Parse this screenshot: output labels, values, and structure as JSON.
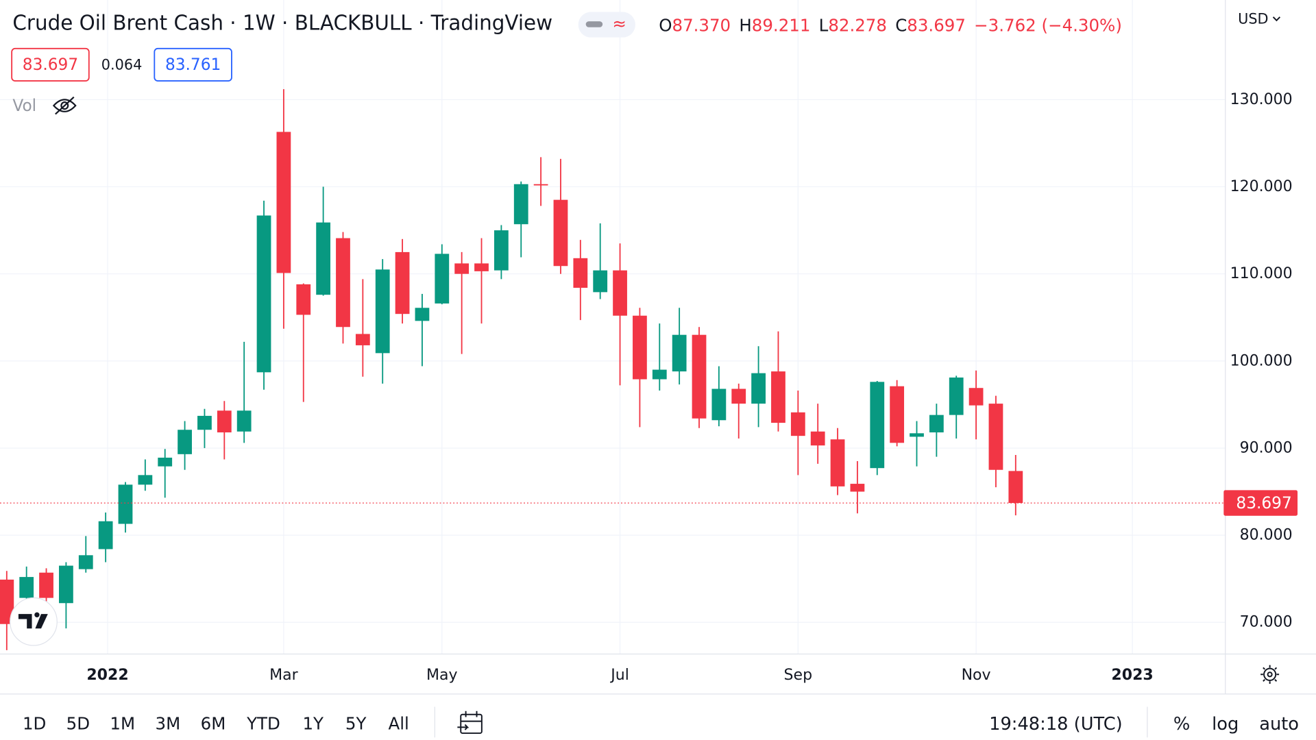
{
  "chart_data": {
    "type": "candlestick",
    "title": "Crude Oil Brent Cash · 1W · BLACKBULL · TradingView",
    "ohlc_legend": [
      {
        "label": "O",
        "value": "87.370"
      },
      {
        "label": "H",
        "value": "89.211"
      },
      {
        "label": "L",
        "value": "82.278"
      },
      {
        "label": "C",
        "value": "83.697"
      }
    ],
    "change": "−3.762 (−4.30%)",
    "bid": "83.697",
    "spread": "0.064",
    "ask": "83.761",
    "volume_label": "Vol",
    "currency": "USD",
    "up_color": "#089981",
    "down_color": "#f23645",
    "open": [
      74.9,
      72.8,
      75.7,
      72.2,
      76.1,
      78.4,
      81.3,
      85.8,
      87.9,
      89.3,
      92.1,
      94.3,
      91.9,
      98.7,
      126.3,
      108.8,
      107.6,
      114.1,
      103.1,
      100.9,
      112.5,
      104.6,
      106.6,
      111.2,
      111.2,
      110.4,
      115.7,
      120.3,
      118.5,
      111.8,
      107.9,
      110.4,
      105.2,
      97.9,
      98.8,
      103.0,
      93.2,
      96.8,
      95.1,
      98.8,
      94.1,
      91.9,
      91.0,
      85.9,
      87.7,
      97.1,
      91.3,
      91.8,
      93.8,
      96.9,
      95.1,
      87.37
    ],
    "high": [
      75.9,
      76.4,
      76.2,
      76.9,
      79.9,
      82.6,
      86.1,
      88.7,
      89.9,
      93.1,
      94.5,
      95.4,
      102.2,
      118.4,
      131.2,
      108.9,
      120.0,
      114.8,
      109.4,
      111.7,
      114.0,
      107.7,
      113.4,
      112.5,
      114.1,
      115.6,
      120.6,
      123.4,
      123.2,
      113.9,
      115.8,
      113.5,
      106.1,
      104.3,
      106.1,
      103.9,
      99.4,
      97.4,
      101.7,
      103.4,
      96.6,
      95.1,
      92.3,
      88.5,
      97.7,
      97.8,
      93.1,
      95.1,
      98.3,
      98.9,
      96.0,
      89.211
    ],
    "low": [
      66.8,
      70.9,
      71.8,
      69.3,
      75.7,
      76.9,
      80.3,
      85.1,
      84.3,
      87.5,
      90.0,
      88.7,
      90.6,
      96.7,
      103.7,
      95.3,
      107.5,
      102.0,
      98.2,
      97.4,
      104.3,
      99.4,
      106.5,
      100.8,
      104.3,
      109.4,
      111.9,
      117.8,
      110.0,
      104.7,
      107.1,
      97.2,
      92.4,
      96.6,
      97.3,
      92.3,
      92.5,
      91.1,
      92.4,
      91.9,
      86.9,
      88.2,
      84.6,
      82.5,
      86.9,
      90.2,
      87.9,
      89.0,
      91.1,
      91.0,
      85.5,
      82.278
    ],
    "close": [
      69.8,
      75.2,
      72.8,
      76.5,
      77.7,
      81.6,
      85.8,
      86.9,
      88.9,
      92.1,
      93.7,
      91.8,
      94.3,
      116.7,
      110.1,
      105.3,
      115.9,
      103.9,
      101.8,
      110.5,
      105.4,
      106.1,
      112.3,
      110.0,
      110.3,
      115.0,
      120.3,
      120.2,
      110.9,
      108.4,
      110.4,
      105.2,
      97.9,
      99.0,
      103.0,
      93.4,
      96.8,
      95.1,
      98.6,
      92.9,
      91.4,
      90.3,
      85.6,
      85.0,
      97.6,
      90.6,
      91.7,
      93.8,
      98.1,
      94.9,
      87.5,
      83.697
    ],
    "last_price": {
      "value": 83.697,
      "label": "83.697"
    },
    "ylim": [
      66.36,
      141.44
    ],
    "yticks": [
      {
        "value": 70,
        "label": "70.000"
      },
      {
        "value": 80,
        "label": "80.000"
      },
      {
        "value": 90,
        "label": "90.000"
      },
      {
        "value": 100,
        "label": "100.000"
      },
      {
        "value": 110,
        "label": "110.000"
      },
      {
        "value": 120,
        "label": "120.000"
      },
      {
        "value": 130,
        "label": "130.000"
      }
    ],
    "xlim": [
      -0.34,
      61.6
    ],
    "xticks": [
      {
        "value": 5.1,
        "label": "2022"
      },
      {
        "value": 14,
        "label": "Mar"
      },
      {
        "value": 22,
        "label": "May"
      },
      {
        "value": 31,
        "label": "Jul"
      },
      {
        "value": 40,
        "label": "Sep"
      },
      {
        "value": 49,
        "label": "Nov"
      },
      {
        "value": 56.9,
        "label": "2023"
      }
    ],
    "grid": true
  },
  "toolbar": {
    "ranges": [
      "1D",
      "5D",
      "1M",
      "3M",
      "6M",
      "YTD",
      "1Y",
      "5Y",
      "All"
    ],
    "time": "19:48:18 (UTC)",
    "options": [
      "%",
      "log",
      "auto"
    ]
  }
}
